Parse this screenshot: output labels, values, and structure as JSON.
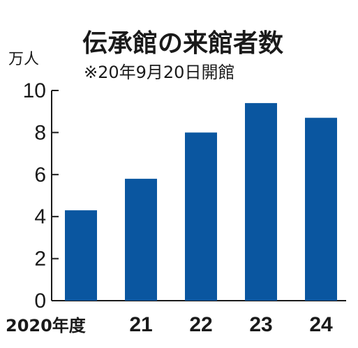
{
  "chart_data": {
    "type": "bar",
    "title": "伝承館の来館者数",
    "subtitle": "※20年9月20日開館",
    "ylabel": "万人",
    "categories": [
      "2020年度",
      "21",
      "22",
      "23",
      "24"
    ],
    "values": [
      4.3,
      5.8,
      8.0,
      9.4,
      8.7
    ],
    "ylim": [
      0,
      10
    ],
    "yticks": [
      "0",
      "2",
      "4",
      "6",
      "8",
      "10"
    ],
    "grid": false,
    "bar_color": "#0a56a0"
  }
}
